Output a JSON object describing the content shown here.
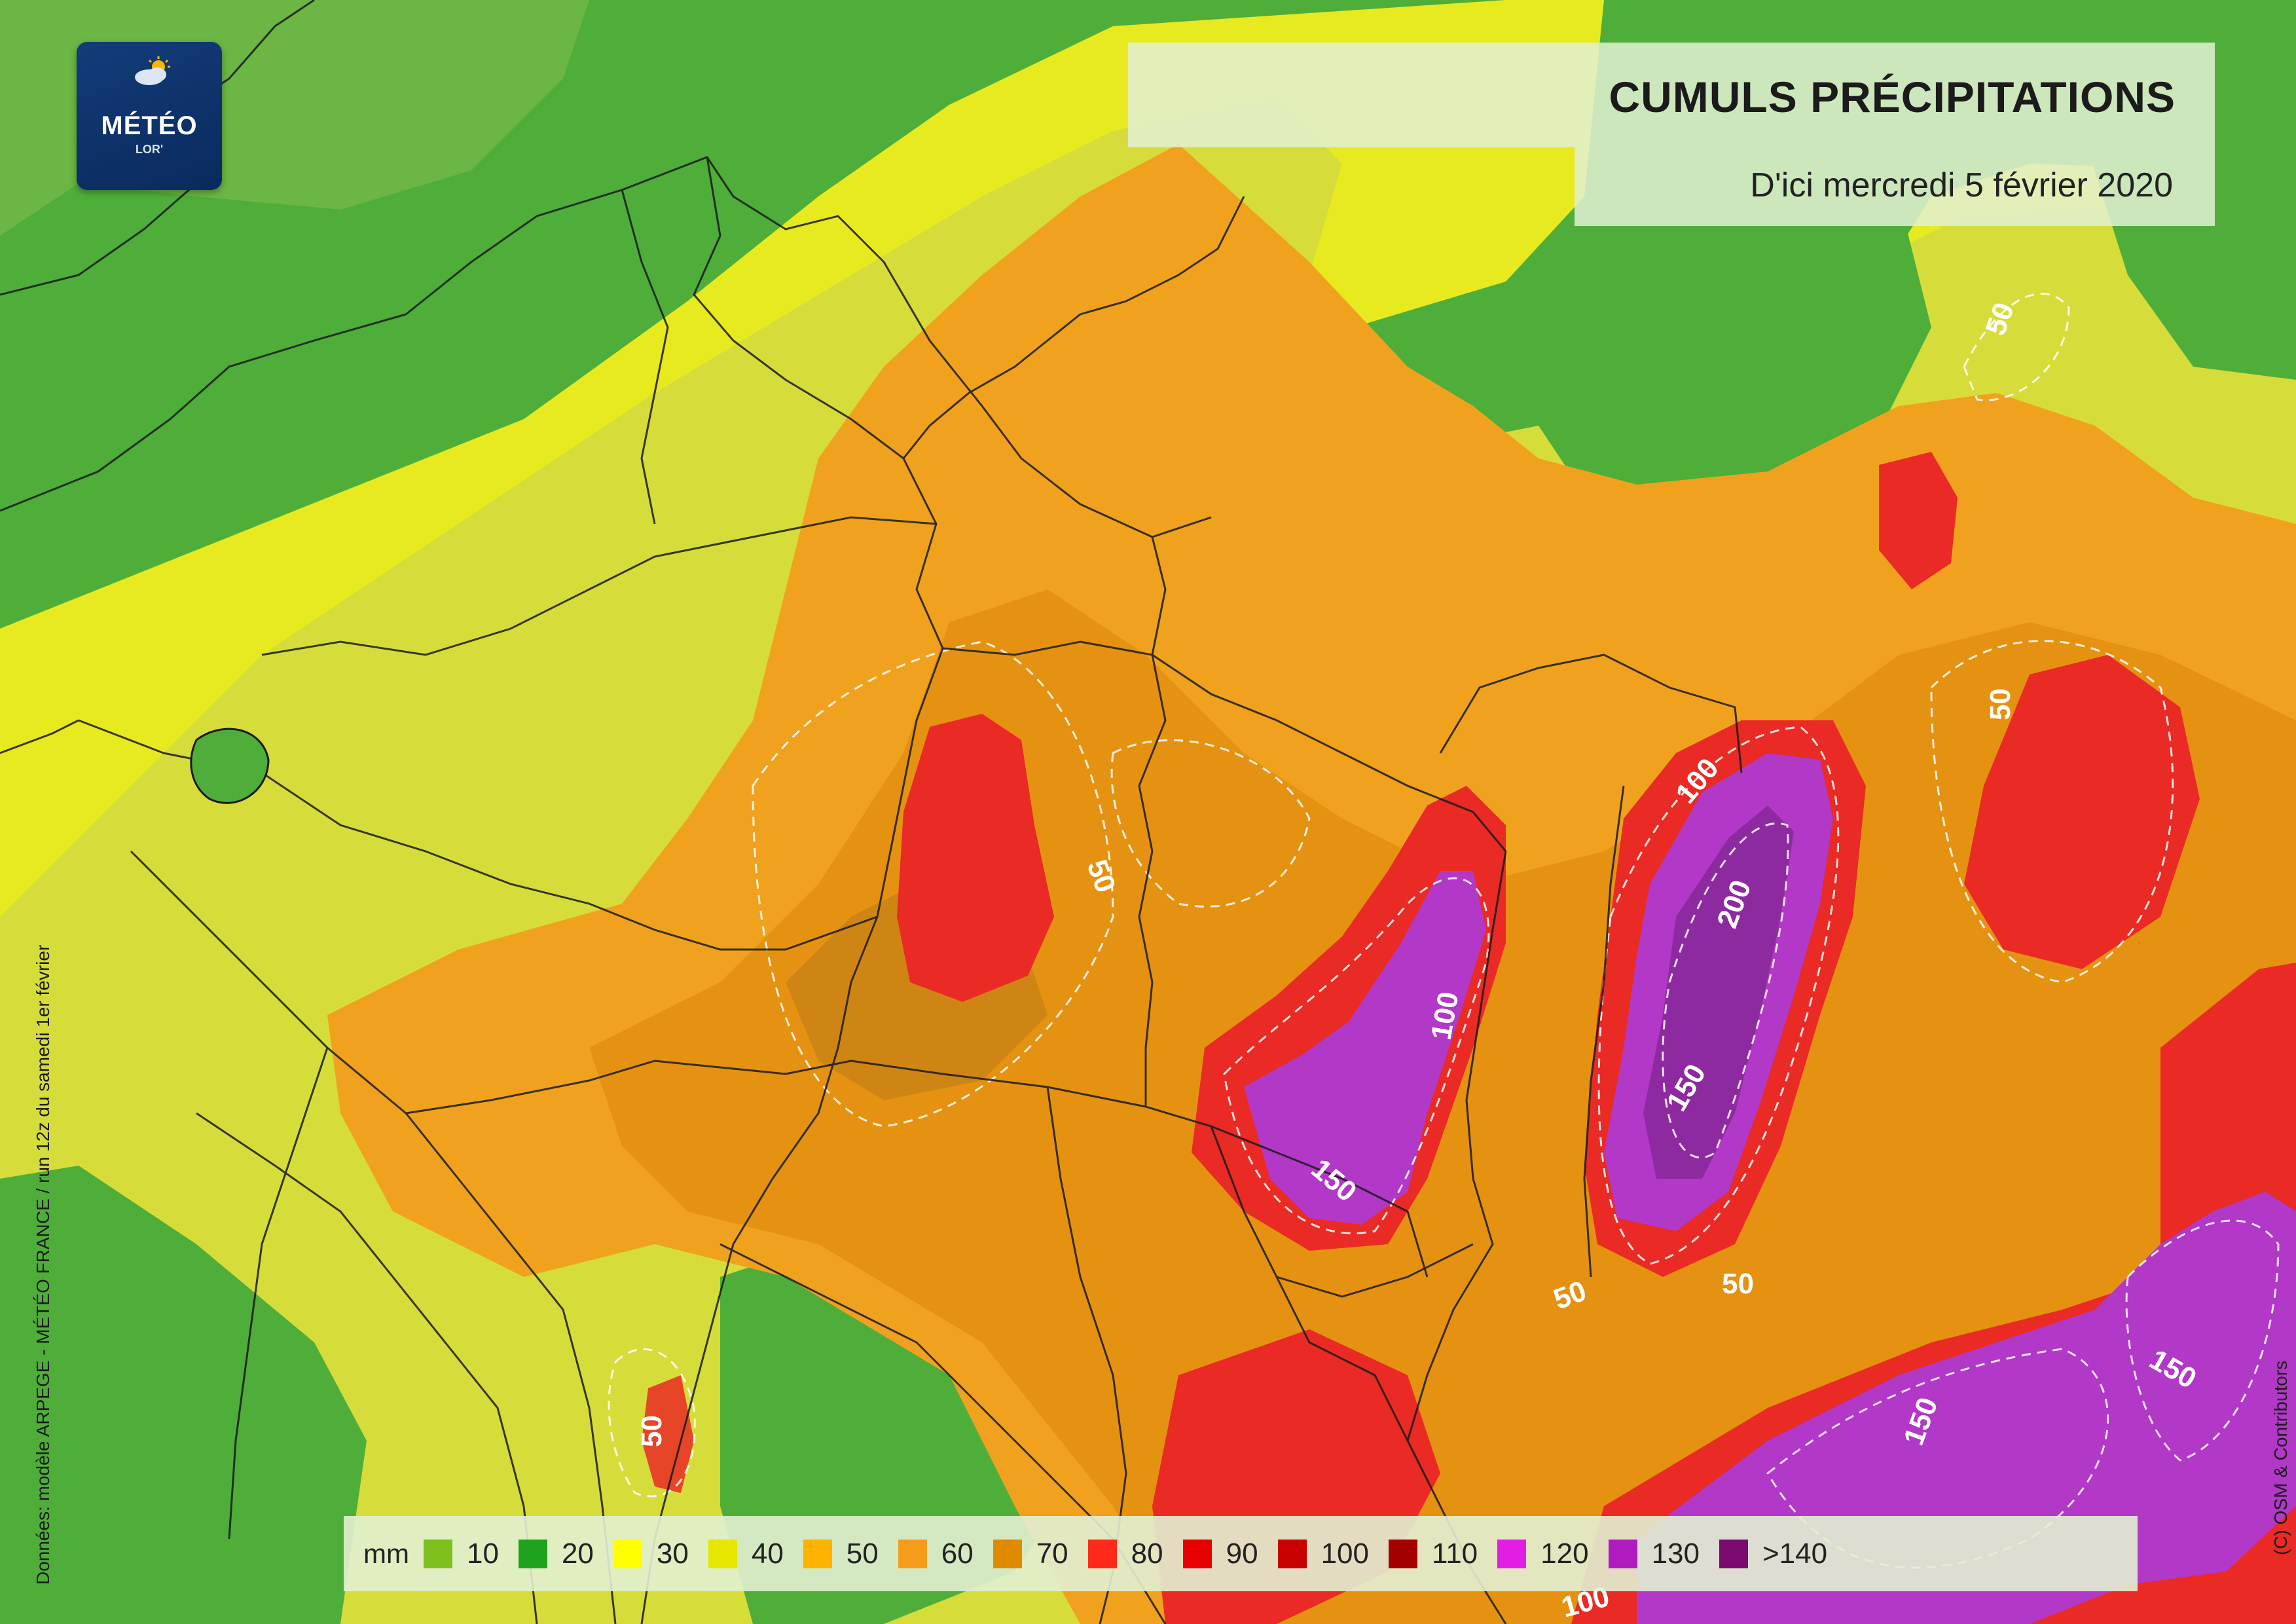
{
  "header": {
    "title": "CUMULS PRÉCIPITATIONS",
    "subtitle": "D'ici mercredi 5 février 2020"
  },
  "logo": {
    "main": "MÉTÉO",
    "sub": "LOR'",
    "icon": "sun-cloud-icon"
  },
  "credits": {
    "data_source": "Données: modèle ARPEGE - MÉTÉO FRANCE / run 12z du samedi 1er février",
    "map_copyright": "(C) OSM & Contributors"
  },
  "contour_labels": [
    "50",
    "50",
    "50",
    "50",
    "50",
    "50",
    "100",
    "100",
    "100",
    "150",
    "150",
    "150",
    "150",
    "200"
  ],
  "legend": {
    "unit": "mm",
    "items": [
      {
        "label": "10",
        "color": "#7fbf1e"
      },
      {
        "label": "20",
        "color": "#1fa31f"
      },
      {
        "label": "30",
        "color": "#ffff00"
      },
      {
        "label": "40",
        "color": "#e6e600"
      },
      {
        "label": "50",
        "color": "#ffb200"
      },
      {
        "label": "60",
        "color": "#f59d1a"
      },
      {
        "label": "70",
        "color": "#e08a00"
      },
      {
        "label": "80",
        "color": "#ff2a1a"
      },
      {
        "label": "90",
        "color": "#e60000"
      },
      {
        "label": "100",
        "color": "#c80000"
      },
      {
        "label": "110",
        "color": "#a50000"
      },
      {
        "label": "120",
        "color": "#e21ee6"
      },
      {
        "label": "130",
        "color": "#b01cc0"
      },
      {
        "label": ">140",
        "color": "#7a0a6e"
      }
    ]
  }
}
